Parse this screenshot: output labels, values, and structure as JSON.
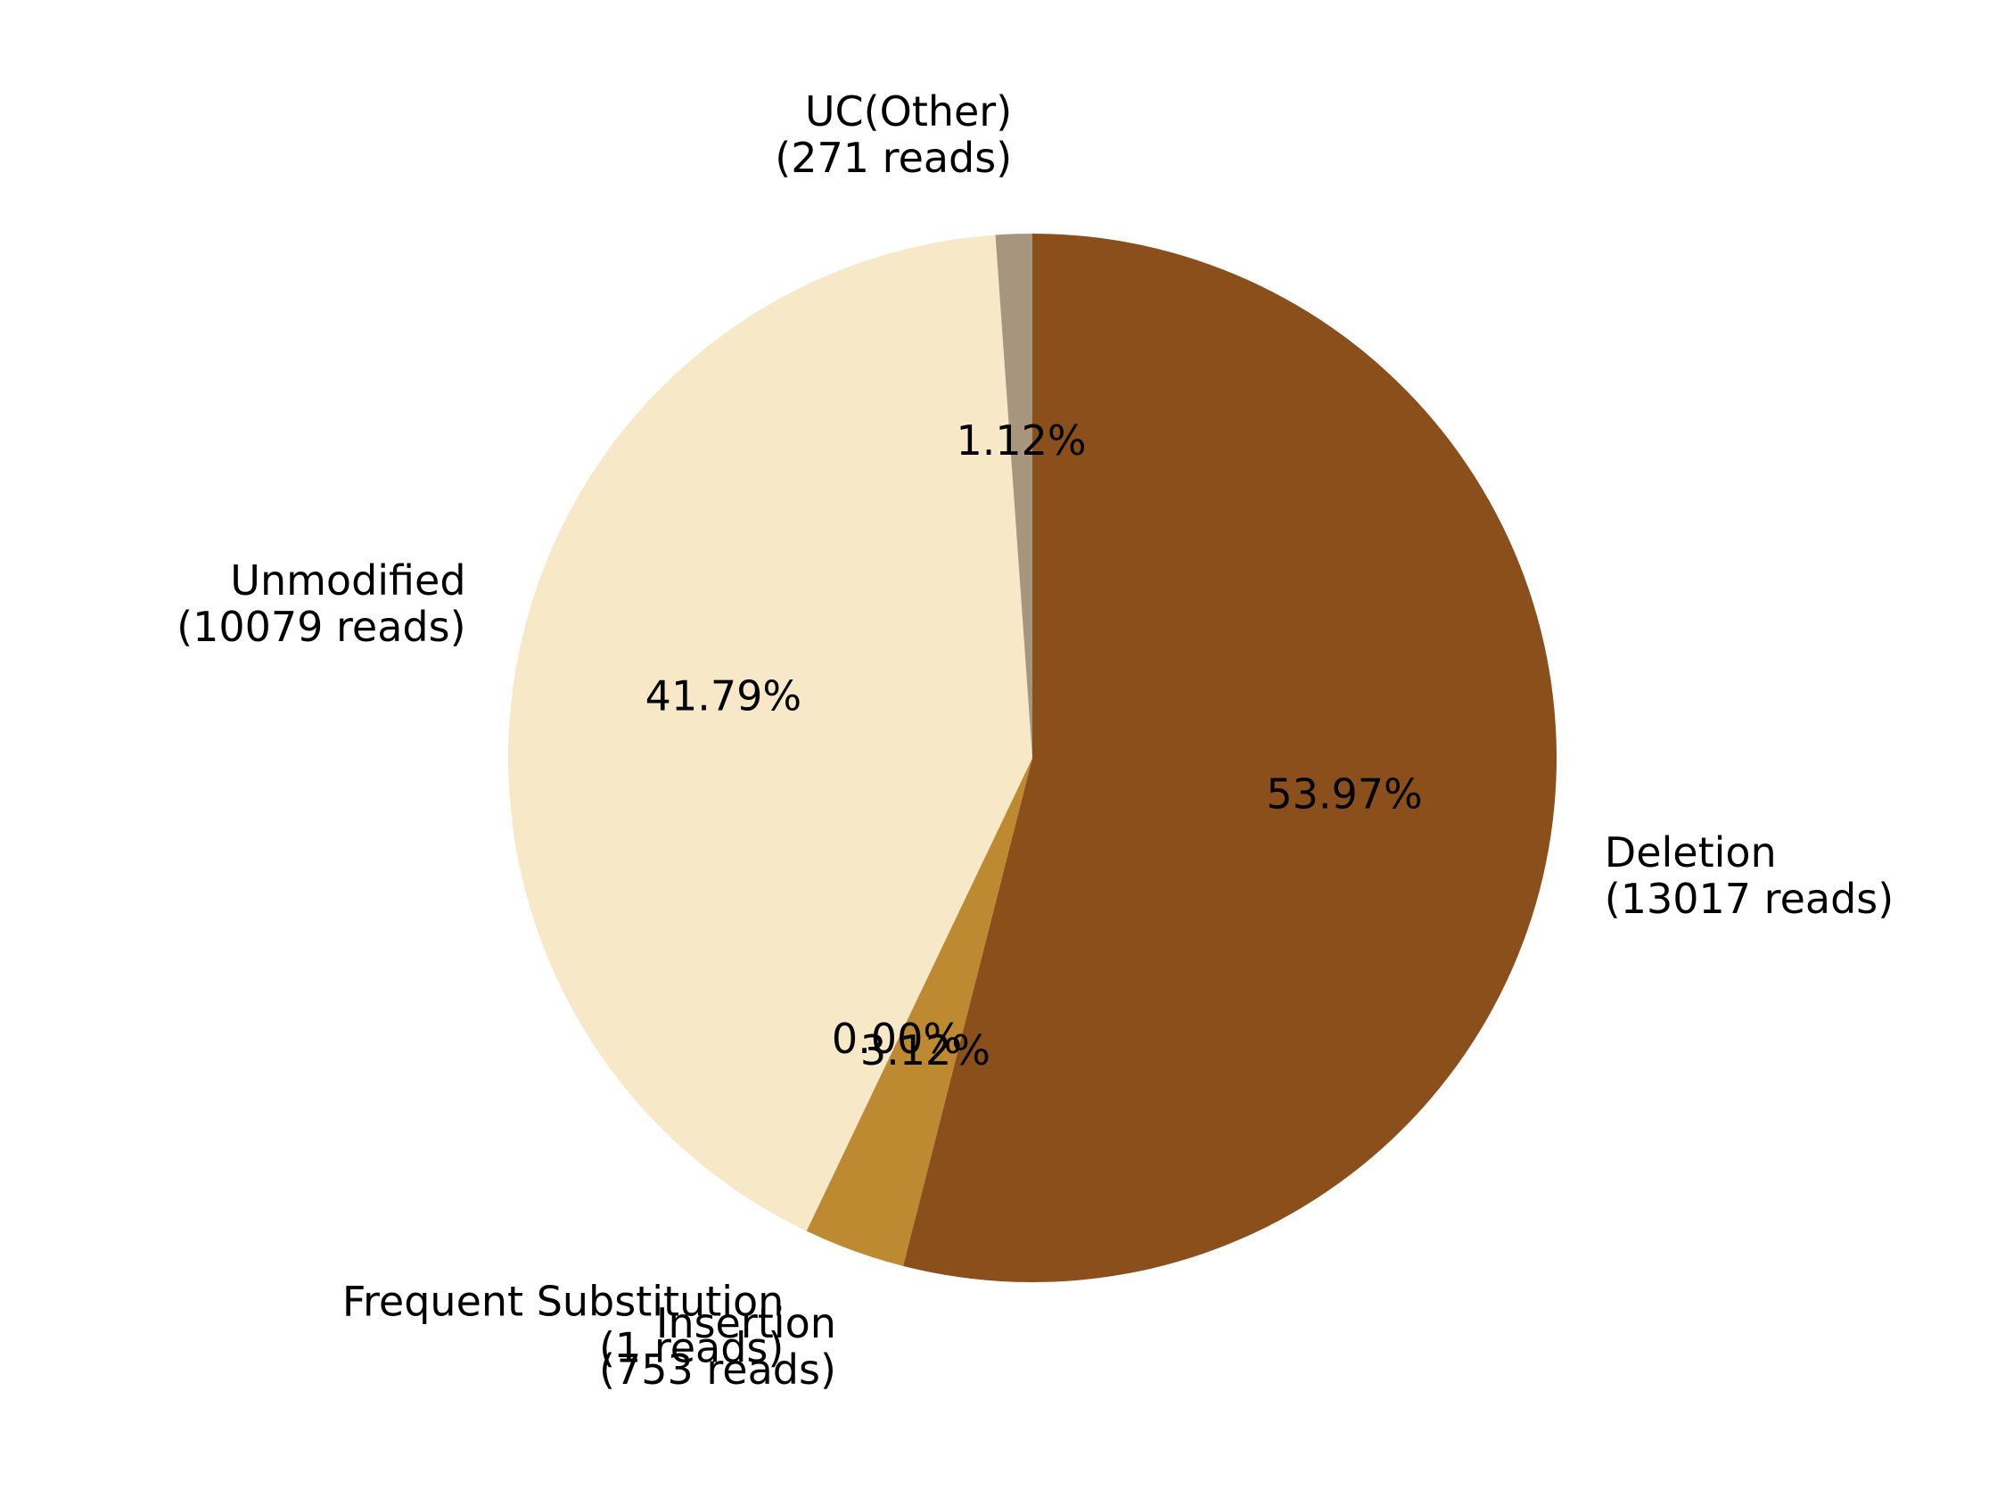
{
  "chart_data": {
    "type": "pie",
    "title": "",
    "start_angle_deg": 90,
    "direction": "clockwise",
    "slices": [
      {
        "label": "Deletion",
        "reads_label": "(13017 reads)",
        "reads": 13017,
        "percent_label": "53.97%",
        "color": "#8b4f1c"
      },
      {
        "label": "Insertion",
        "reads_label": "(753 reads)",
        "reads": 753,
        "percent_label": "3.12%",
        "color": "#bd8a32"
      },
      {
        "label": "Frequent Substitution",
        "reads_label": "(1 reads)",
        "reads": 1,
        "percent_label": "0.00%",
        "color": "#8a6a3d"
      },
      {
        "label": "Unmodified",
        "reads_label": "(10079 reads)",
        "reads": 10079,
        "percent_label": "41.79%",
        "color": "#f7e8c8"
      },
      {
        "label": "UC(Other)",
        "reads_label": "(271 reads)",
        "reads": 271,
        "percent_label": "1.12%",
        "color": "#a8957d"
      }
    ]
  }
}
